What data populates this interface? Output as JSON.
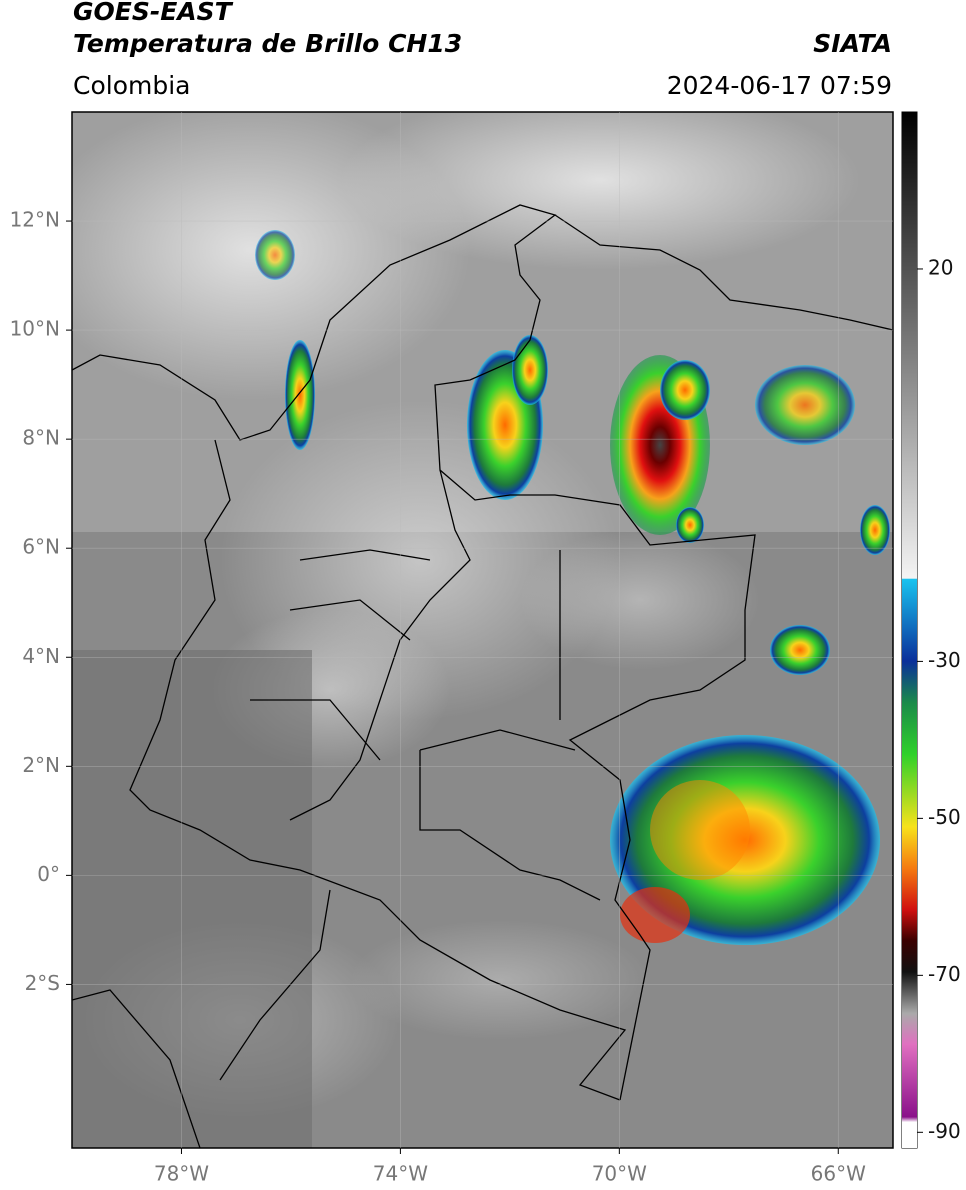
{
  "header": {
    "satellite": "GOES-EAST",
    "product": "Temperatura de Brillo CH13",
    "agency": "SIATA",
    "region": "Colombia",
    "timestamp": "2024-06-17 07:59"
  },
  "map": {
    "xlim": [
      -80,
      -65
    ],
    "ylim": [
      -5,
      14
    ],
    "xticks": [
      {
        "value": -78,
        "label": "78°W"
      },
      {
        "value": -74,
        "label": "74°W"
      },
      {
        "value": -70,
        "label": "70°W"
      },
      {
        "value": -66,
        "label": "66°W"
      }
    ],
    "yticks": [
      {
        "value": 12,
        "label": "12°N"
      },
      {
        "value": 10,
        "label": "10°N"
      },
      {
        "value": 8,
        "label": "8°N"
      },
      {
        "value": 6,
        "label": "6°N"
      },
      {
        "value": 4,
        "label": "4°N"
      },
      {
        "value": 2,
        "label": "2°N"
      },
      {
        "value": 0,
        "label": "0°"
      },
      {
        "value": -2,
        "label": "2°S"
      }
    ],
    "grid": true
  },
  "colorbar": {
    "lim": [
      -92,
      40
    ],
    "ticks": [
      20,
      -30,
      -50,
      -70,
      -90
    ]
  }
}
